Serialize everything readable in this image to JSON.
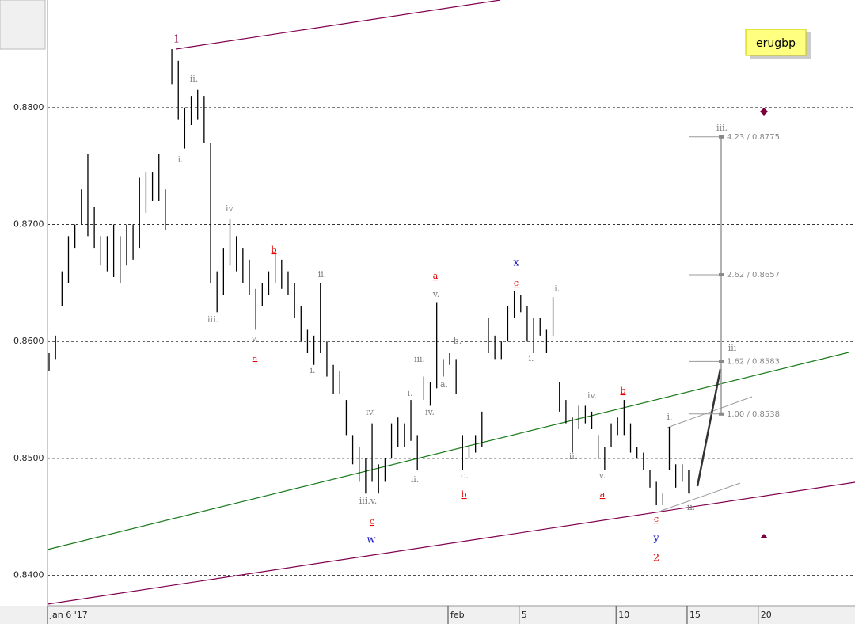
{
  "chart_data": {
    "type": "ohlc",
    "symbol": "erugbp",
    "x": [
      0,
      1,
      2,
      3,
      4,
      5,
      6,
      7,
      8,
      9,
      10,
      11,
      12,
      13,
      14,
      15,
      16,
      17,
      18,
      19,
      20,
      21,
      22,
      23,
      24,
      25,
      26,
      27,
      28,
      29,
      30,
      31,
      32,
      33,
      34,
      35,
      36,
      37,
      38,
      39,
      40,
      41,
      42,
      43,
      44,
      45,
      46,
      47,
      48,
      49,
      50,
      51,
      52,
      53,
      54,
      55,
      56,
      57,
      58,
      59,
      60,
      61,
      62,
      63,
      64,
      65,
      66,
      67,
      68,
      69,
      70,
      71,
      72,
      73,
      74,
      75,
      76,
      77,
      78,
      79,
      80,
      81,
      82,
      83,
      84,
      85,
      86,
      87,
      88,
      89,
      90,
      91,
      92,
      93,
      94,
      95,
      96,
      97,
      98,
      99
    ],
    "high": [
      0.859,
      0.8605,
      0.866,
      0.869,
      0.87,
      0.873,
      0.876,
      0.8715,
      0.869,
      0.869,
      0.87,
      0.869,
      0.87,
      0.87,
      0.874,
      0.8745,
      0.8745,
      0.876,
      0.873,
      0.885,
      0.884,
      0.88,
      0.881,
      0.8815,
      0.881,
      0.877,
      0.866,
      0.868,
      0.8705,
      0.869,
      0.868,
      0.867,
      0.8645,
      0.865,
      0.866,
      0.868,
      0.867,
      0.866,
      0.865,
      0.863,
      0.861,
      0.8605,
      0.865,
      0.86,
      0.858,
      0.8575,
      0.855,
      0.852,
      0.851,
      0.85,
      0.853,
      0.8495,
      0.85,
      0.853,
      0.8535,
      0.853,
      0.855,
      0.852,
      0.857,
      0.8565,
      0.8633,
      0.8585,
      0.859,
      0.8585,
      0.852,
      0.851,
      0.852,
      0.854,
      0.862,
      0.8605,
      0.86,
      0.863,
      0.8643,
      0.864,
      0.863,
      0.862,
      0.862,
      0.861,
      0.8638,
      0.8565,
      0.855,
      0.8535,
      0.8545,
      0.8545,
      0.854,
      0.852,
      0.851,
      0.853,
      0.8535,
      0.855,
      0.853,
      0.851,
      0.8505,
      0.849,
      0.848,
      0.847,
      0.8527,
      0.8495,
      0.8495,
      0.849
    ],
    "low": [
      0.8575,
      0.8585,
      0.863,
      0.865,
      0.868,
      0.87,
      0.869,
      0.868,
      0.8665,
      0.866,
      0.8655,
      0.865,
      0.8665,
      0.867,
      0.868,
      0.871,
      0.872,
      0.872,
      0.8695,
      0.882,
      0.879,
      0.8765,
      0.8785,
      0.879,
      0.877,
      0.865,
      0.8625,
      0.864,
      0.8665,
      0.866,
      0.865,
      0.864,
      0.861,
      0.863,
      0.864,
      0.865,
      0.8645,
      0.864,
      0.862,
      0.86,
      0.859,
      0.858,
      0.859,
      0.857,
      0.8555,
      0.8555,
      0.852,
      0.8495,
      0.848,
      0.847,
      0.848,
      0.847,
      0.848,
      0.85,
      0.851,
      0.851,
      0.8515,
      0.849,
      0.855,
      0.8545,
      0.856,
      0.857,
      0.858,
      0.8555,
      0.849,
      0.85,
      0.8505,
      0.851,
      0.859,
      0.8585,
      0.8585,
      0.86,
      0.862,
      0.8625,
      0.86,
      0.859,
      0.8605,
      0.859,
      0.8605,
      0.854,
      0.853,
      0.8505,
      0.8525,
      0.853,
      0.8525,
      0.85,
      0.849,
      0.851,
      0.852,
      0.852,
      0.8505,
      0.85,
      0.849,
      0.8475,
      0.846,
      0.846,
      0.849,
      0.8475,
      0.848,
      0.847
    ],
    "color": "#000000",
    "xlim": [
      0,
      124
    ],
    "xticks": [
      {
        "value": 0,
        "label": "jan 6 '17"
      },
      {
        "value": 62,
        "label": "feb"
      },
      {
        "value": 73,
        "label": "5"
      },
      {
        "value": 88,
        "label": "10"
      },
      {
        "value": 99,
        "label": "15"
      },
      {
        "value": 110,
        "label": "20"
      }
    ],
    "ylim": [
      0.8374,
      0.8892
    ],
    "yticks": [
      {
        "value": 0.84,
        "label": "0.8400"
      },
      {
        "value": 0.85,
        "label": "0.8500"
      },
      {
        "value": 0.86,
        "label": "0.8600"
      },
      {
        "value": 0.87,
        "label": "0.8700"
      },
      {
        "value": 0.88,
        "label": "0.8800"
      }
    ],
    "grid": true,
    "fib_levels": [
      {
        "value": 0.8775,
        "label": "4.23 / 0.8775"
      },
      {
        "value": 0.8657,
        "label": "2.62 / 0.8657"
      },
      {
        "value": 0.8583,
        "label": "1.62 / 0.8583"
      },
      {
        "value": 0.8538,
        "label": "1.00 / 0.8538"
      }
    ],
    "annotations": [
      {
        "text": "1",
        "color": "#8b0045"
      },
      {
        "text": "ii.",
        "color": "#808080"
      },
      {
        "text": "i.",
        "color": "#808080"
      },
      {
        "text": "iv.",
        "color": "#808080"
      },
      {
        "text": "iii.",
        "color": "#808080"
      },
      {
        "text": "v.",
        "color": "#808080"
      },
      {
        "text": "b",
        "color": "#e00000"
      },
      {
        "text": "a",
        "color": "#e00000"
      },
      {
        "text": "ii.",
        "color": "#808080"
      },
      {
        "text": "i.",
        "color": "#808080"
      },
      {
        "text": "iv.",
        "color": "#808080"
      },
      {
        "text": "iii.v.",
        "color": "#808080"
      },
      {
        "text": "c",
        "color": "#e00000"
      },
      {
        "text": "w",
        "color": "#1010c0"
      },
      {
        "text": "i.",
        "color": "#808080"
      },
      {
        "text": "iii.",
        "color": "#808080"
      },
      {
        "text": "iv.",
        "color": "#808080"
      },
      {
        "text": "ii.",
        "color": "#808080"
      },
      {
        "text": "v.",
        "color": "#808080"
      },
      {
        "text": "a",
        "color": "#e00000"
      },
      {
        "text": "a.",
        "color": "#808080"
      },
      {
        "text": "b.",
        "color": "#808080"
      },
      {
        "text": "c.",
        "color": "#808080"
      },
      {
        "text": "b",
        "color": "#e00000"
      },
      {
        "text": "x",
        "color": "#1010c0"
      },
      {
        "text": "c",
        "color": "#e00000"
      },
      {
        "text": "ii.",
        "color": "#808080"
      },
      {
        "text": "i.",
        "color": "#808080"
      },
      {
        "text": "iv.",
        "color": "#808080"
      },
      {
        "text": "iii",
        "color": "#808080"
      },
      {
        "text": "v.",
        "color": "#808080"
      },
      {
        "text": "b",
        "color": "#e00000"
      },
      {
        "text": "a",
        "color": "#e00000"
      },
      {
        "text": "i.",
        "color": "#808080"
      },
      {
        "text": "c",
        "color": "#e00000"
      },
      {
        "text": "ii.",
        "color": "#808080"
      },
      {
        "text": "y",
        "color": "#1010c0"
      },
      {
        "text": "2",
        "color": "#e00000"
      },
      {
        "text": "iii",
        "color": "#808080"
      },
      {
        "text": "iii.",
        "color": "#808080"
      }
    ]
  }
}
